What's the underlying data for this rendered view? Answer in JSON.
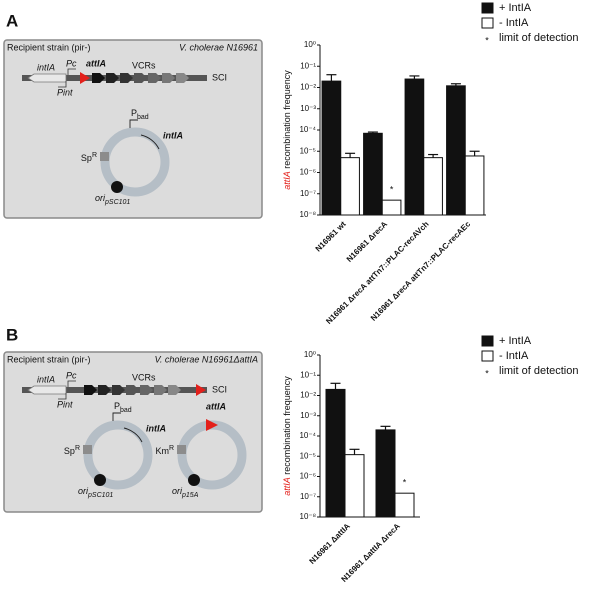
{
  "panel_labels": [
    "A",
    "B"
  ],
  "diagrams": [
    {
      "title": "Recipient strain (pir-)",
      "strain": "V. cholerae N16961",
      "chromosome": {
        "gene": "intIA",
        "promoter1": "Pc",
        "promoter2": "Pint",
        "site": "attIA",
        "repeats": "VCRs",
        "element": "SCI"
      },
      "plasmids": [
        {
          "promoter": {
            "text": "P",
            "sub": "bad"
          },
          "gene": "intIA",
          "marker": {
            "text": "Sp",
            "sup": "R"
          },
          "origin": {
            "text": "ori",
            "sub": "pSC101"
          }
        }
      ]
    },
    {
      "title": "Recipient strain (pir-)",
      "strain": "V. cholerae N16961ΔattIA",
      "chromosome": {
        "gene": "intIA",
        "promoter1": "Pc",
        "promoter2": "Pint",
        "repeats": "VCRs",
        "element": "SCI"
      },
      "plasmids": [
        {
          "promoter": {
            "text": "P",
            "sub": "bad"
          },
          "gene": "intIA",
          "marker": {
            "text": "Sp",
            "sup": "R"
          },
          "origin": {
            "text": "ori",
            "sub": "pSC101"
          }
        },
        {
          "site": "attIA",
          "marker": {
            "text": "Km",
            "sup": "R"
          },
          "origin": {
            "text": "ori",
            "sub": "p15A"
          }
        }
      ]
    }
  ],
  "chart_data": [
    {
      "type": "bar",
      "log_scale": true,
      "ylabel": {
        "highlight": "attIA",
        "rest": " recombination frequency"
      },
      "categories": [
        "N16961 wt",
        "N16961 ΔrecA",
        "N16961 ΔrecA attTn7::PLAC-recAVch",
        "N16961 ΔrecA attTn7::PLAC-recAEc"
      ],
      "series": [
        {
          "name": "+ IntIA",
          "color": "#111111",
          "values": [
            0.02,
            7e-05,
            0.025,
            0.012
          ],
          "errors": [
            0.02,
            1e-05,
            0.01,
            0.003
          ]
        },
        {
          "name": "- IntIA",
          "color": "#ffffff",
          "values": [
            5e-06,
            5e-08,
            5e-06,
            6e-06
          ],
          "errors": [
            3e-06,
            null,
            2e-06,
            4e-06
          ]
        }
      ],
      "annotations": [
        {
          "text": "*",
          "series": 1,
          "category": 1
        }
      ],
      "legend_note": "limit of detection",
      "ylim": [
        1e-08,
        1
      ],
      "yticks": [
        {
          "value": 1,
          "label": "10⁰"
        },
        {
          "value": 0.1,
          "label": "10⁻¹"
        },
        {
          "value": 0.01,
          "label": "10⁻²"
        },
        {
          "value": 0.001,
          "label": "10⁻³"
        },
        {
          "value": 0.0001,
          "label": "10⁻⁴"
        },
        {
          "value": 1e-05,
          "label": "10⁻⁵"
        },
        {
          "value": 1e-06,
          "label": "10⁻⁶"
        },
        {
          "value": 1e-07,
          "label": "10⁻⁷"
        },
        {
          "value": 1e-08,
          "label": "10⁻⁸"
        }
      ]
    },
    {
      "type": "bar",
      "log_scale": true,
      "ylabel": {
        "highlight": "attIA",
        "rest": " recombination frequency"
      },
      "categories": [
        "N16961 ΔattIA",
        "N16961 ΔattIA ΔrecA"
      ],
      "series": [
        {
          "name": "+ IntIA",
          "color": "#111111",
          "values": [
            0.02,
            0.0002
          ],
          "errors": [
            0.02,
            0.0001
          ]
        },
        {
          "name": "- IntIA",
          "color": "#ffffff",
          "values": [
            1.2e-05,
            1.5e-07
          ],
          "errors": [
            1e-05,
            null
          ]
        }
      ],
      "annotations": [
        {
          "text": "*",
          "series": 1,
          "category": 1
        }
      ],
      "legend_note": "limit of detection",
      "ylim": [
        1e-08,
        1
      ],
      "yticks": [
        {
          "value": 1,
          "label": "10⁰"
        },
        {
          "value": 0.1,
          "label": "10⁻¹"
        },
        {
          "value": 0.01,
          "label": "10⁻²"
        },
        {
          "value": 0.001,
          "label": "10⁻³"
        },
        {
          "value": 0.0001,
          "label": "10⁻⁴"
        },
        {
          "value": 1e-05,
          "label": "10⁻⁵"
        },
        {
          "value": 1e-06,
          "label": "10⁻⁶"
        },
        {
          "value": 1e-07,
          "label": "10⁻⁷"
        },
        {
          "value": 1e-08,
          "label": "10⁻⁸"
        }
      ]
    }
  ]
}
